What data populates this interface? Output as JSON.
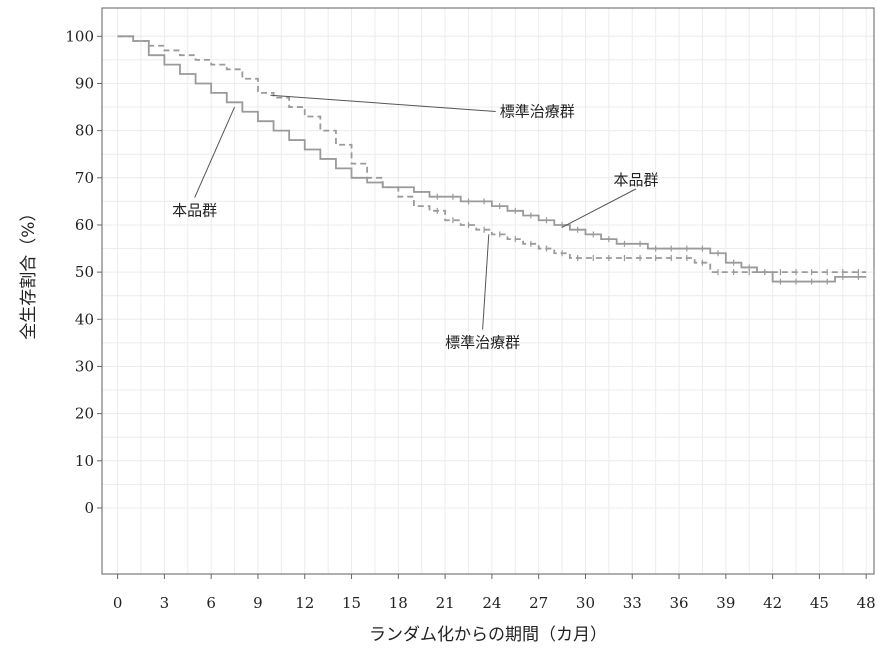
{
  "chart_data": {
    "type": "line",
    "title": "",
    "xlabel": "ランダム化からの期間（カ月）",
    "ylabel": "全生存割合（%）",
    "xlim": [
      -1,
      48.5
    ],
    "ylim": [
      -14,
      106
    ],
    "x_ticks": [
      "0",
      "3",
      "6",
      "9",
      "12",
      "15",
      "18",
      "21",
      "24",
      "27",
      "30",
      "33",
      "36",
      "39",
      "42",
      "45",
      "48"
    ],
    "y_ticks": [
      "0",
      "10",
      "20",
      "30",
      "40",
      "50",
      "60",
      "70",
      "80",
      "90",
      "100"
    ],
    "grid": true,
    "series": [
      {
        "name": "本品群",
        "style": "solid",
        "color": "#9a9a9a",
        "points": [
          [
            0,
            100
          ],
          [
            1,
            99
          ],
          [
            2,
            96
          ],
          [
            3,
            94
          ],
          [
            4,
            92
          ],
          [
            5,
            90
          ],
          [
            6,
            88
          ],
          [
            7,
            86
          ],
          [
            8,
            84
          ],
          [
            9,
            82
          ],
          [
            10,
            80
          ],
          [
            11,
            78
          ],
          [
            12,
            76
          ],
          [
            13,
            74
          ],
          [
            14,
            72
          ],
          [
            15,
            70
          ],
          [
            16,
            69
          ],
          [
            17,
            68
          ],
          [
            18,
            68
          ],
          [
            19,
            67
          ],
          [
            20,
            66
          ],
          [
            21,
            66
          ],
          [
            22,
            65
          ],
          [
            23,
            65
          ],
          [
            24,
            64
          ],
          [
            25,
            63
          ],
          [
            26,
            62
          ],
          [
            27,
            61
          ],
          [
            28,
            60
          ],
          [
            29,
            59
          ],
          [
            30,
            58
          ],
          [
            31,
            57
          ],
          [
            32,
            56
          ],
          [
            33,
            56
          ],
          [
            34,
            55
          ],
          [
            35,
            55
          ],
          [
            36,
            55
          ],
          [
            37,
            55
          ],
          [
            38,
            54
          ],
          [
            39,
            52
          ],
          [
            40,
            51
          ],
          [
            41,
            50
          ],
          [
            42,
            48
          ],
          [
            43,
            48
          ],
          [
            44,
            48
          ],
          [
            45,
            48
          ],
          [
            46,
            49
          ],
          [
            47,
            49
          ],
          [
            48,
            49
          ]
        ]
      },
      {
        "name": "標準治療群",
        "style": "dashed",
        "color": "#9a9a9a",
        "points": [
          [
            0,
            100
          ],
          [
            1,
            99
          ],
          [
            2,
            98
          ],
          [
            3,
            97
          ],
          [
            4,
            96
          ],
          [
            5,
            95
          ],
          [
            6,
            94
          ],
          [
            7,
            93
          ],
          [
            8,
            91
          ],
          [
            9,
            88
          ],
          [
            10,
            87
          ],
          [
            11,
            85
          ],
          [
            12,
            83
          ],
          [
            13,
            80
          ],
          [
            14,
            77
          ],
          [
            15,
            73
          ],
          [
            16,
            70
          ],
          [
            17,
            68
          ],
          [
            18,
            66
          ],
          [
            19,
            64
          ],
          [
            20,
            63
          ],
          [
            21,
            61
          ],
          [
            22,
            60
          ],
          [
            23,
            59
          ],
          [
            24,
            58
          ],
          [
            25,
            57
          ],
          [
            26,
            56
          ],
          [
            27,
            55
          ],
          [
            28,
            54
          ],
          [
            29,
            53
          ],
          [
            30,
            53
          ],
          [
            31,
            53
          ],
          [
            32,
            53
          ],
          [
            33,
            53
          ],
          [
            34,
            53
          ],
          [
            35,
            53
          ],
          [
            36,
            53
          ],
          [
            37,
            52
          ],
          [
            38,
            50
          ],
          [
            39,
            50
          ],
          [
            40,
            50
          ],
          [
            41,
            50
          ],
          [
            42,
            50
          ],
          [
            43,
            50
          ],
          [
            44,
            50
          ],
          [
            45,
            50
          ],
          [
            46,
            50
          ],
          [
            47,
            50
          ],
          [
            48,
            50
          ]
        ]
      }
    ],
    "annotations": [
      {
        "text": "標準治療群",
        "x": 24.5,
        "y": 83,
        "point_x": 9.8,
        "point_y": 87.5
      },
      {
        "text": "本品群",
        "x": 31.8,
        "y": 68.5,
        "point_x": 28.5,
        "point_y": 59.5
      },
      {
        "text": "本品群",
        "x": 3.5,
        "y": 62,
        "point_x": 7.5,
        "point_y": 85
      },
      {
        "text": "標準治療群",
        "x": 21,
        "y": 34,
        "point_x": 23.8,
        "point_y": 58
      }
    ]
  }
}
